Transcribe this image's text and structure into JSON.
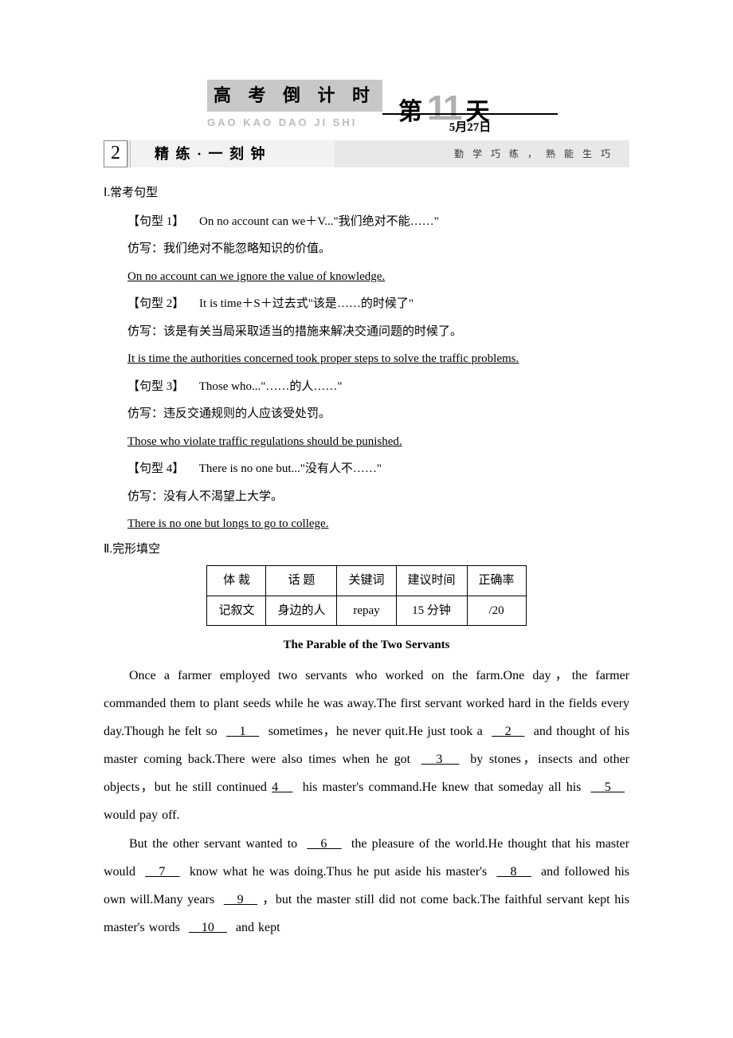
{
  "header": {
    "title_cn": "高 考 倒 计 时",
    "pinyin": "GAO KAO DAO JI SHI",
    "di": "第",
    "number": "11",
    "tian": "天",
    "date": "5月27日"
  },
  "section_bar": {
    "num": "2",
    "title": "精 练 · 一 刻 钟",
    "subtitle": "勤 学 巧 练 ， 熟 能 生 巧"
  },
  "part1": {
    "heading": "Ⅰ.常考句型",
    "patterns": [
      {
        "label": "【句型 1】",
        "formula": "On no account can we＋V...\"我们绝对不能……\"",
        "prompt": "仿写：我们绝对不能忽略知识的价值。",
        "answer": "On no account can we ignore the value of knowledge."
      },
      {
        "label": "【句型 2】",
        "formula": "It is time＋S＋过去式\"该是……的时候了\"",
        "prompt": "仿写：该是有关当局采取适当的措施来解决交通问题的时候了。",
        "answer": "It is time the authorities concerned took proper steps to solve the traffic problems."
      },
      {
        "label": "【句型 3】",
        "formula": "Those who...\"……的人……\"",
        "prompt": "仿写：违反交通规则的人应该受处罚。",
        "answer": "Those who violate traffic regulations should be punished."
      },
      {
        "label": "【句型 4】",
        "formula": "There is no one but...\"没有人不……\"",
        "prompt": "仿写：没有人不渴望上大学。",
        "answer": "There is no one but longs to go to college."
      }
    ]
  },
  "part2": {
    "heading": "Ⅱ.完形填空",
    "table": {
      "headers": [
        "体 裁",
        "话 题",
        "关键词",
        "建议时间",
        "正确率"
      ],
      "row": [
        "记叙文",
        "身边的人",
        "repay",
        "15 分钟",
        "/20"
      ]
    },
    "story_title": "The Parable of the Two Servants",
    "p1_a": "Once a farmer employed two servants who worked on the farm.One day，the farmer commanded them to plant seeds while he was away.The first servant worked hard in the fields every day.Though he felt so ",
    "b1": "　1　",
    "p1_b": " sometimes，he never quit.He just took a ",
    "b2": "　2　",
    "p1_c": " and thought of his master coming back.There were also times when he got ",
    "b3": "　3　",
    "p1_d": " by stones，insects and other objects，but he still continued ",
    "b4": "4　",
    "p1_e": " his master's command.He knew that someday all his ",
    "b5": "　5　",
    "p1_f": " would pay off.",
    "p2_a": "But the other servant wanted to ",
    "b6": "　6　",
    "p2_b": " the pleasure of the world.He thought that his master would ",
    "b7": "　7　",
    "p2_c": " know what he was doing.Thus he put aside his master's ",
    "b8": "　8　",
    "p2_d": " and followed his own will.Many years ",
    "b9": "　9　",
    "p2_e": "，but the master still did not come back.The faithful servant kept his master's words ",
    "b10": "　10　",
    "p2_f": " and kept"
  }
}
